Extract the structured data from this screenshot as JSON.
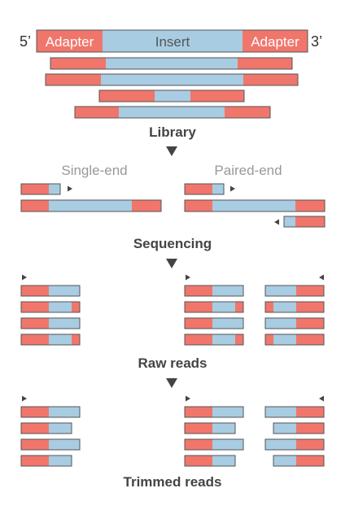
{
  "header": {
    "five_prime": "5’",
    "three_prime": "3’",
    "adapter_left": "Adapter",
    "insert": "Insert",
    "adapter_right": "Adapter"
  },
  "stages": {
    "library": "Library",
    "sequencing": "Sequencing",
    "raw_reads": "Raw reads",
    "trimmed_reads": "Trimmed reads"
  },
  "modes": {
    "single_end": "Single-end",
    "paired_end": "Paired-end"
  },
  "colors": {
    "adapter": "#f0766c",
    "insert": "#a8cce2",
    "outline": "#555555",
    "text_dark": "#444444",
    "text_muted": "#999999"
  },
  "icons": {
    "stage_arrow": "down-triangle-icon",
    "read_direction": "small-triangle-icon"
  }
}
